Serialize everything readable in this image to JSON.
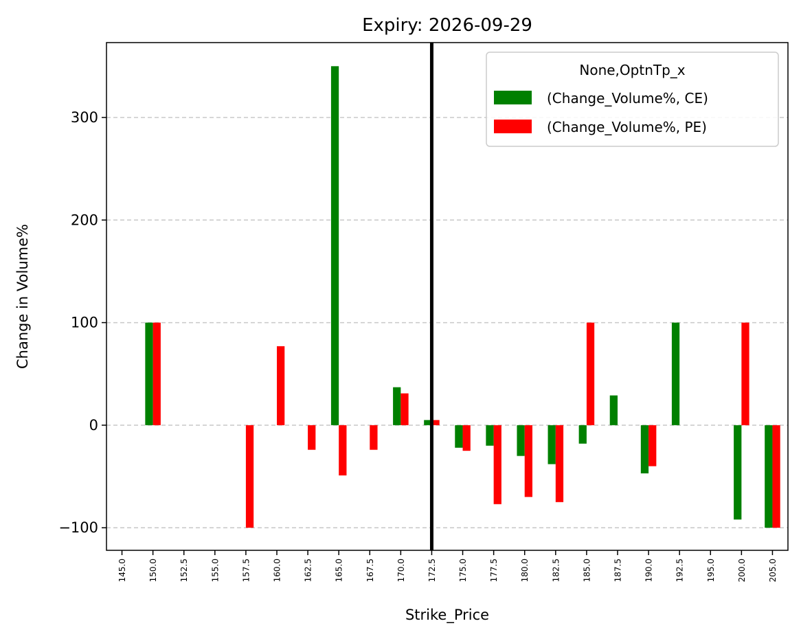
{
  "chart_data": {
    "type": "bar",
    "title": "Expiry: 2026-09-29",
    "xlabel": "Strike_Price",
    "ylabel": "Change in Volume%",
    "categories": [
      "145.0",
      "150.0",
      "152.5",
      "155.0",
      "157.5",
      "160.0",
      "162.5",
      "165.0",
      "167.5",
      "170.0",
      "172.5",
      "175.0",
      "177.5",
      "180.0",
      "182.5",
      "185.0",
      "187.5",
      "190.0",
      "192.5",
      "195.0",
      "200.0",
      "205.0"
    ],
    "series": [
      {
        "name": "(Change_Volume%, CE)",
        "color": "#008000",
        "values": [
          0,
          100,
          0,
          0,
          0,
          0,
          0,
          350,
          0,
          37,
          5,
          -22,
          -20,
          -30,
          -38,
          -18,
          29,
          -47,
          100,
          0,
          -92,
          -100
        ]
      },
      {
        "name": "(Change_Volume%, PE)",
        "color": "#ff0000",
        "values": [
          0,
          100,
          0,
          0,
          -100,
          77,
          -24,
          -49,
          -24,
          31,
          5,
          -25,
          -77,
          -70,
          -75,
          100,
          0,
          -40,
          0,
          0,
          100,
          -100
        ]
      }
    ],
    "legend_title": "None,OptnTp_x",
    "legend_position": "top-right",
    "ylim": [
      -122,
      373
    ],
    "yticks": [
      {
        "value": -100,
        "label": "−100"
      },
      {
        "value": 0,
        "label": "0"
      },
      {
        "value": 100,
        "label": "100"
      },
      {
        "value": 200,
        "label": "200"
      },
      {
        "value": 300,
        "label": "300"
      }
    ],
    "grid": "y-dashed",
    "vline": {
      "category": "172.5",
      "color": "#000000"
    }
  }
}
